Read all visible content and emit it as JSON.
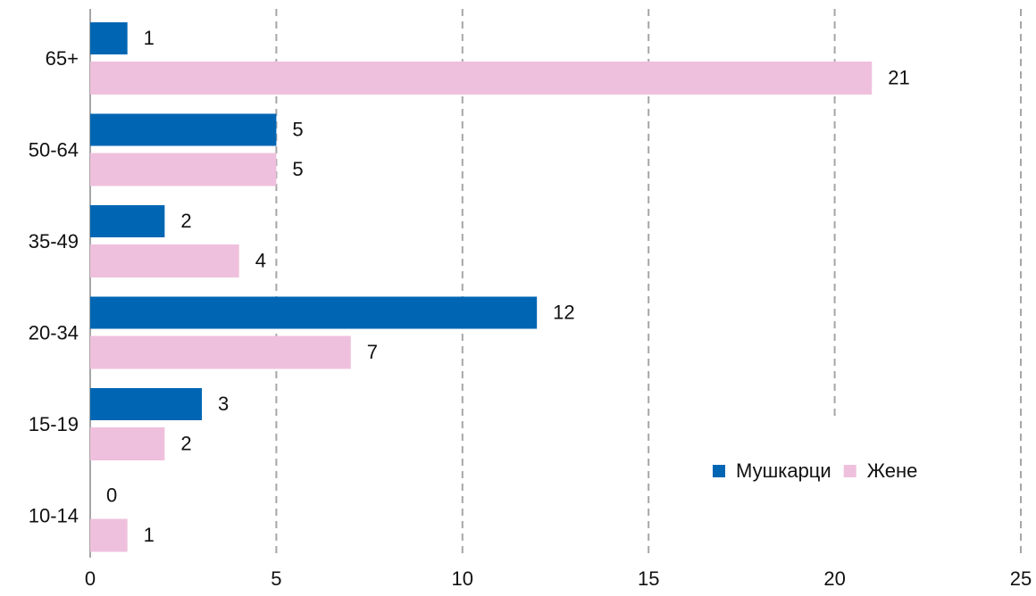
{
  "chart_data": {
    "type": "barh",
    "categories": [
      "65+",
      "50-64",
      "35-49",
      "20-34",
      "15-19",
      "10-14"
    ],
    "series": [
      {
        "name": "Мушкарци",
        "color": "#0066b3",
        "values": [
          1,
          5,
          2,
          12,
          3,
          0
        ]
      },
      {
        "name": "Жене",
        "color": "#efc0dd",
        "values": [
          21,
          5,
          4,
          7,
          2,
          1
        ]
      }
    ],
    "xlim": [
      0,
      25
    ],
    "xticks": [
      0,
      5,
      10,
      15,
      20,
      25
    ],
    "grid": true,
    "legend": "lower right"
  }
}
